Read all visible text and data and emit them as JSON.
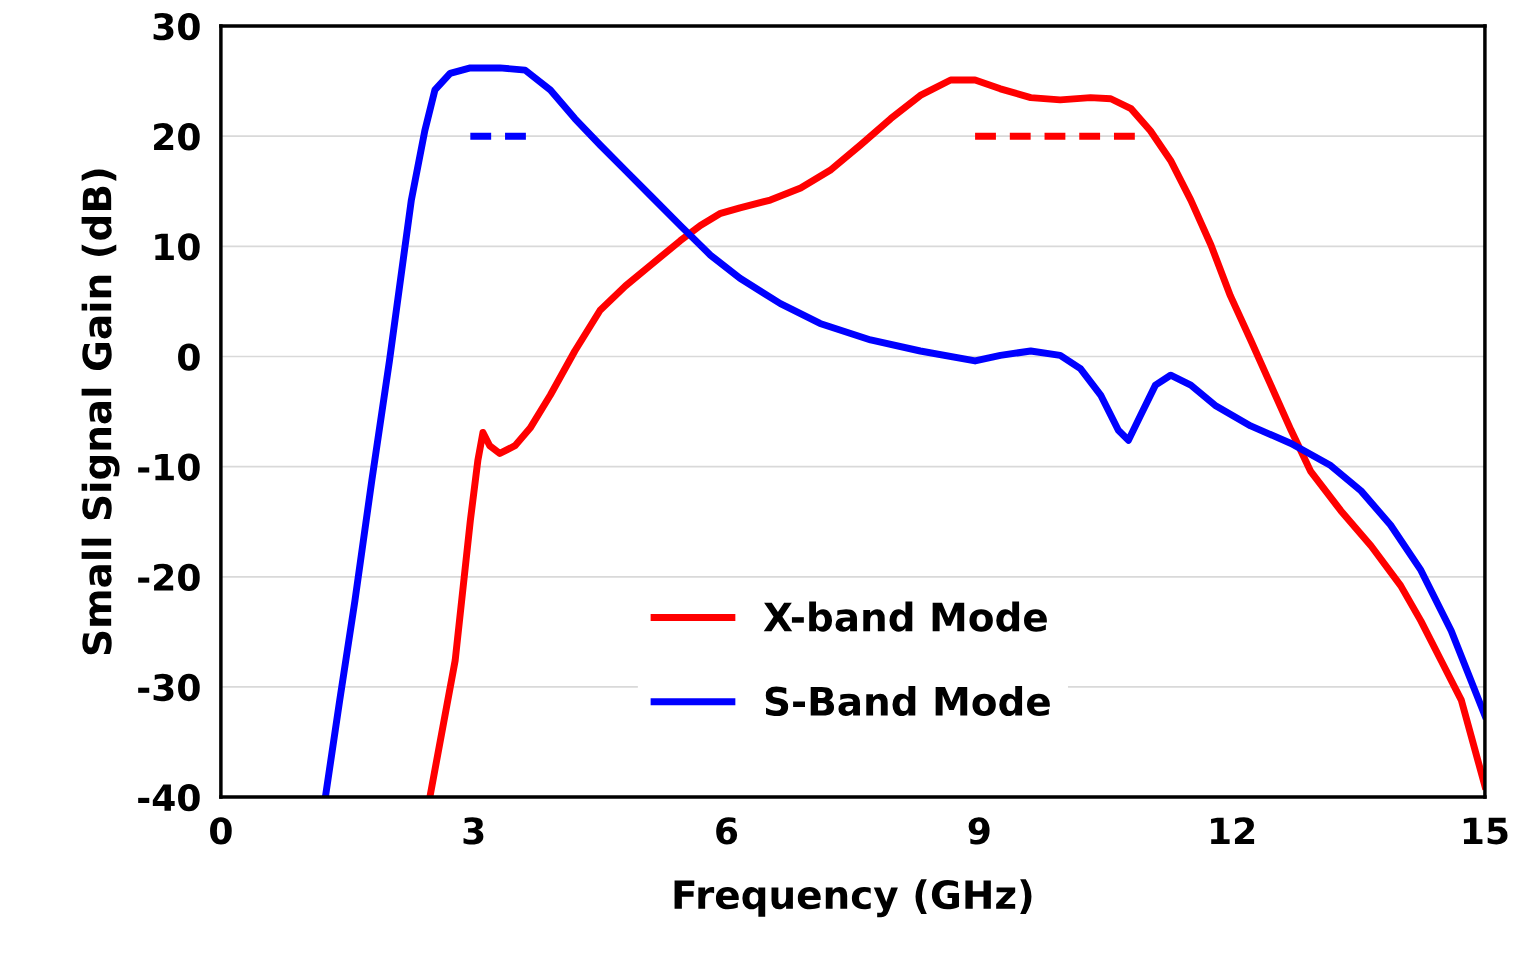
{
  "chart_data": {
    "type": "line",
    "xlabel": "Frequency (GHz)",
    "ylabel": "Small Signal Gain (dB)",
    "xlim": [
      0,
      15
    ],
    "xticks": [
      0,
      3,
      6,
      9,
      12,
      15
    ],
    "ylim": [
      -40,
      30
    ],
    "yticks": [
      -40,
      -30,
      -20,
      -10,
      0,
      10,
      20,
      30
    ],
    "grid": "y",
    "legend": "bottom",
    "marker": "none",
    "line_style": "solid",
    "series": [
      {
        "name": "X-band Mode",
        "color": "#ff0000",
        "x": [
          2.48,
          2.78,
          2.96,
          3.05,
          3.11,
          3.19,
          3.31,
          3.49,
          3.67,
          3.91,
          4.2,
          4.5,
          4.8,
          5.1,
          5.45,
          5.69,
          5.93,
          6.16,
          6.52,
          6.88,
          7.23,
          7.59,
          7.95,
          8.3,
          8.66,
          8.95,
          9.25,
          9.61,
          9.96,
          10.32,
          10.56,
          10.8,
          11.03,
          11.27,
          11.51,
          11.75,
          11.98,
          12.22,
          12.46,
          12.7,
          12.93,
          13.29,
          13.65,
          14.0,
          14.24,
          14.48,
          14.72,
          15
        ],
        "values": [
          -40,
          -27.6,
          -14.9,
          -9.4,
          -6.9,
          -8.1,
          -8.8,
          -8.1,
          -6.5,
          -3.5,
          0.5,
          4.2,
          6.4,
          8.3,
          10.5,
          11.9,
          13.0,
          13.5,
          14.2,
          15.3,
          16.9,
          19.2,
          21.6,
          23.7,
          25.1,
          25.1,
          24.3,
          23.5,
          23.3,
          23.5,
          23.4,
          22.5,
          20.5,
          17.8,
          14.2,
          10.1,
          5.5,
          1.5,
          -2.6,
          -6.7,
          -10.4,
          -14.0,
          -17.2,
          -20.8,
          -24.0,
          -27.6,
          -31.2,
          -39.0
        ]
      },
      {
        "name": "S-Band Mode",
        "color": "#0000ff",
        "x": [
          1.24,
          1.41,
          1.59,
          1.79,
          2.0,
          2.26,
          2.42,
          2.54,
          2.72,
          2.96,
          3.31,
          3.61,
          3.91,
          4.2,
          4.5,
          4.8,
          5.1,
          5.45,
          5.81,
          6.16,
          6.64,
          7.11,
          7.71,
          8.3,
          8.95,
          9.25,
          9.61,
          9.96,
          10.2,
          10.44,
          10.65,
          10.77,
          10.91,
          11.09,
          11.27,
          11.51,
          11.81,
          12.22,
          12.7,
          13.17,
          13.53,
          13.88,
          14.24,
          14.6,
          15
        ],
        "values": [
          -40,
          -31.2,
          -22.2,
          -11.3,
          -0.4,
          14.2,
          20.5,
          24.2,
          25.7,
          26.2,
          26.2,
          26.0,
          24.2,
          21.6,
          19.2,
          16.9,
          14.6,
          11.9,
          9.2,
          7.1,
          4.8,
          3.0,
          1.5,
          0.5,
          -0.4,
          0.1,
          0.5,
          0.1,
          -1.1,
          -3.5,
          -6.7,
          -7.6,
          -5.4,
          -2.6,
          -1.7,
          -2.6,
          -4.5,
          -6.3,
          -7.9,
          -9.9,
          -12.2,
          -15.3,
          -19.4,
          -24.9,
          -32.6
        ]
      },
      {
        "color": "#0000ff",
        "line_style": "dashed",
        "x": [
          2.96,
          3.67
        ],
        "values": [
          20,
          20
        ]
      },
      {
        "color": "#ff0000",
        "line_style": "dashed",
        "x": [
          8.95,
          10.98
        ],
        "values": [
          20,
          20
        ]
      }
    ]
  }
}
